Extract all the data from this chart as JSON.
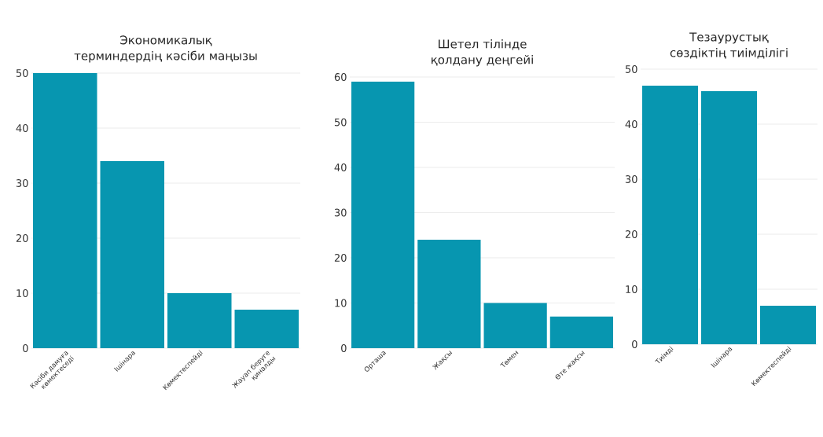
{
  "chart_data": [
    {
      "type": "bar",
      "title": "Экономикалық терминдердің кәсіби маңызы",
      "categories": [
        "Кәсіби дамуға көмектеседі",
        "Ішінара",
        "Көмектеспейді",
        "Жауап беруге қиналды"
      ],
      "values": [
        50,
        34,
        10,
        7
      ],
      "color": "#0796b0",
      "ylim": [
        0,
        50
      ],
      "yticks": [
        0,
        10,
        20,
        30,
        40,
        50
      ],
      "grid": "y"
    },
    {
      "type": "bar",
      "title": "Шетел тілінде қолдану деңгейі",
      "categories": [
        "Орташа",
        "Жақсы",
        "Төмен",
        "Өте жақсы"
      ],
      "values": [
        59,
        24,
        10,
        7
      ],
      "color": "#0796b0",
      "ylim": [
        0,
        60
      ],
      "yticks": [
        0,
        10,
        20,
        30,
        40,
        50,
        60
      ],
      "grid": "y"
    },
    {
      "type": "bar",
      "title": "Тезаурустық сөздіктің тиімділігі",
      "categories": [
        "Тиімді",
        "Ішінара",
        "Көмектеспейді"
      ],
      "values": [
        47,
        46,
        7
      ],
      "color": "#0796b0",
      "ylim": [
        0,
        50
      ],
      "yticks": [
        0,
        10,
        20,
        30,
        40,
        50
      ],
      "grid": "y"
    }
  ]
}
